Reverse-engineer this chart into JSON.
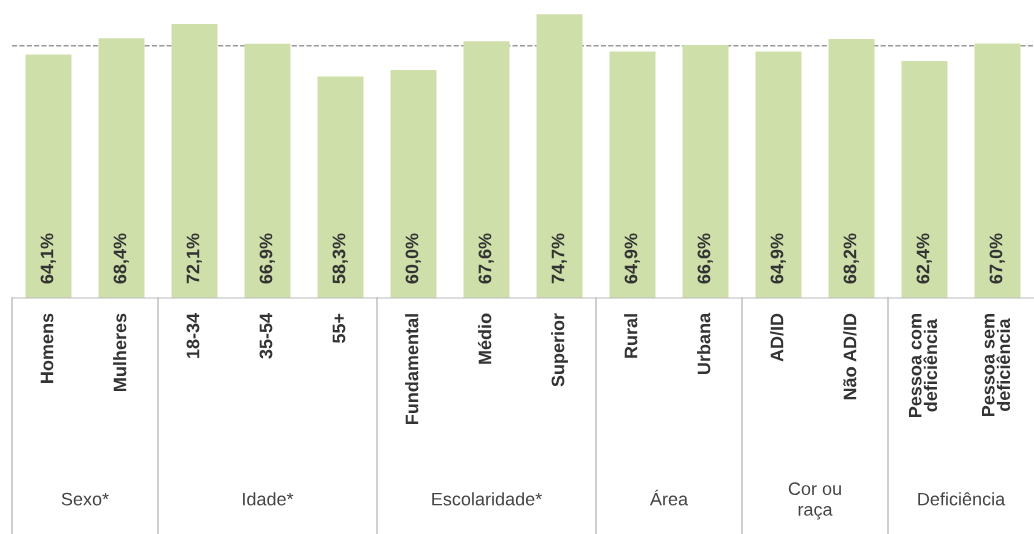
{
  "chart_data": {
    "type": "bar",
    "categories": [
      "Homens",
      "Mulheres",
      "18-34",
      "35-54",
      "55+",
      "Fundamental",
      "Médio",
      "Superior",
      "Rural",
      "Urbana",
      "AD/ID",
      "Não AD/ID",
      "Pessoa com\ndeficiência",
      "Pessoa sem\ndeficiência"
    ],
    "values": [
      64.1,
      68.4,
      72.1,
      66.9,
      58.3,
      60.0,
      67.6,
      74.7,
      64.9,
      66.6,
      64.9,
      68.2,
      62.4,
      67.0
    ],
    "value_labels": [
      "64,1%",
      "68,4%",
      "72,1%",
      "66,9%",
      "58,3%",
      "60,0%",
      "67,6%",
      "74,7%",
      "64,9%",
      "66,6%",
      "64,9%",
      "68,2%",
      "62,4%",
      "67,0%"
    ],
    "color": "#cfdfaa",
    "tick_labels": "x",
    "ref_lines": [
      {
        "axis": "y",
        "value": 66.4,
        "color": "#999999",
        "line_style": "dashed"
      }
    ],
    "annotations": [
      "Sexo*",
      "Idade*",
      "Escolaridade*",
      "Área",
      "Cor ou\nraça",
      "Deficiência"
    ]
  }
}
